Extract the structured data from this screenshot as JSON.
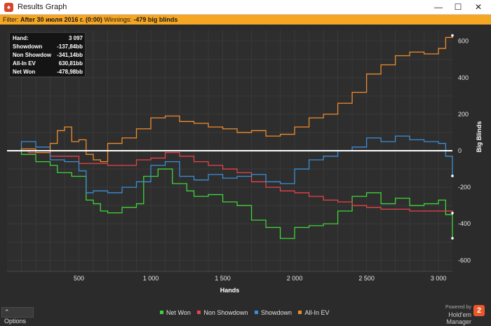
{
  "window": {
    "title": "Results Graph",
    "minimize_glyph": "—",
    "maximize_glyph": "☐",
    "close_glyph": "✕",
    "icon": "app-logo-icon"
  },
  "filter": {
    "prefix": "Filter:",
    "value": "After 30 июля 2016 г. (0:00)",
    "winnings_label": "Winnings:",
    "winnings_value": "-479 big blinds"
  },
  "stats": [
    {
      "label": "Hand:",
      "value": "3 097"
    },
    {
      "label": "Showdown",
      "value": "-137,84bb"
    },
    {
      "label": "Non Showdow",
      "value": "-341,14bb"
    },
    {
      "label": "All-In EV",
      "value": "630,81bb"
    },
    {
      "label": "Net Won",
      "value": "-478,98bb"
    }
  ],
  "options_label": "Options",
  "powered_by": "Powered by",
  "brand": "Hold'em Manager",
  "brand_badge": "2",
  "colors": {
    "net_won": "#3fd43a",
    "non_showdown": "#e8424a",
    "showdown": "#3a8fd6",
    "all_in_ev": "#ee8c2c",
    "zero_line": "#ffffff"
  },
  "chart_data": {
    "type": "line",
    "xlabel": "Hands",
    "ylabel": "Big Blinds",
    "xlim": [
      0,
      3097
    ],
    "ylim": [
      -660,
      660
    ],
    "x_ticks": [
      500,
      1000,
      1500,
      2000,
      2500,
      3000
    ],
    "x_tick_labels": [
      "500",
      "1 000",
      "1 500",
      "2 000",
      "2 500",
      "3 000"
    ],
    "y_ticks": [
      600,
      400,
      200,
      0,
      -200,
      -400,
      -600
    ],
    "y_tick_labels": [
      "600",
      "400",
      "200",
      "0",
      "-200",
      "-400",
      "-600"
    ],
    "grid": true,
    "legend_position": "bottom",
    "series": [
      {
        "name": "Net Won",
        "color_key": "net_won",
        "points": [
          [
            0,
            0
          ],
          [
            100,
            -20
          ],
          [
            200,
            -60
          ],
          [
            300,
            -80
          ],
          [
            350,
            -120
          ],
          [
            450,
            -140
          ],
          [
            550,
            -270
          ],
          [
            600,
            -290
          ],
          [
            650,
            -330
          ],
          [
            700,
            -340
          ],
          [
            800,
            -310
          ],
          [
            900,
            -290
          ],
          [
            950,
            -140
          ],
          [
            1050,
            -100
          ],
          [
            1150,
            -180
          ],
          [
            1250,
            -220
          ],
          [
            1300,
            -250
          ],
          [
            1400,
            -240
          ],
          [
            1500,
            -280
          ],
          [
            1600,
            -300
          ],
          [
            1700,
            -380
          ],
          [
            1800,
            -420
          ],
          [
            1900,
            -480
          ],
          [
            2000,
            -420
          ],
          [
            2100,
            -410
          ],
          [
            2200,
            -400
          ],
          [
            2300,
            -330
          ],
          [
            2400,
            -250
          ],
          [
            2500,
            -230
          ],
          [
            2600,
            -290
          ],
          [
            2700,
            -260
          ],
          [
            2800,
            -300
          ],
          [
            2900,
            -290
          ],
          [
            3000,
            -270
          ],
          [
            3050,
            -350
          ],
          [
            3097,
            -479
          ]
        ]
      },
      {
        "name": "Non Showdown",
        "color_key": "non_showdown",
        "points": [
          [
            0,
            0
          ],
          [
            150,
            -10
          ],
          [
            300,
            -30
          ],
          [
            500,
            -70
          ],
          [
            700,
            -80
          ],
          [
            900,
            -50
          ],
          [
            1000,
            -40
          ],
          [
            1100,
            -10
          ],
          [
            1200,
            -30
          ],
          [
            1300,
            -60
          ],
          [
            1400,
            -80
          ],
          [
            1500,
            -100
          ],
          [
            1600,
            -120
          ],
          [
            1700,
            -170
          ],
          [
            1800,
            -200
          ],
          [
            1900,
            -220
          ],
          [
            2000,
            -230
          ],
          [
            2100,
            -250
          ],
          [
            2200,
            -270
          ],
          [
            2300,
            -280
          ],
          [
            2400,
            -300
          ],
          [
            2500,
            -310
          ],
          [
            2600,
            -320
          ],
          [
            2700,
            -320
          ],
          [
            2800,
            -330
          ],
          [
            2900,
            -330
          ],
          [
            3000,
            -330
          ],
          [
            3097,
            -341
          ]
        ]
      },
      {
        "name": "Showdown",
        "color_key": "showdown",
        "points": [
          [
            0,
            0
          ],
          [
            100,
            50
          ],
          [
            200,
            20
          ],
          [
            300,
            -50
          ],
          [
            400,
            -60
          ],
          [
            500,
            -110
          ],
          [
            550,
            -230
          ],
          [
            600,
            -220
          ],
          [
            700,
            -230
          ],
          [
            800,
            -200
          ],
          [
            900,
            -170
          ],
          [
            1000,
            -80
          ],
          [
            1100,
            -60
          ],
          [
            1200,
            -140
          ],
          [
            1300,
            -160
          ],
          [
            1400,
            -130
          ],
          [
            1500,
            -150
          ],
          [
            1600,
            -140
          ],
          [
            1700,
            -130
          ],
          [
            1800,
            -170
          ],
          [
            1900,
            -180
          ],
          [
            2000,
            -100
          ],
          [
            2100,
            -50
          ],
          [
            2200,
            -30
          ],
          [
            2300,
            0
          ],
          [
            2400,
            20
          ],
          [
            2500,
            70
          ],
          [
            2600,
            50
          ],
          [
            2700,
            80
          ],
          [
            2800,
            60
          ],
          [
            2900,
            50
          ],
          [
            3000,
            40
          ],
          [
            3050,
            -30
          ],
          [
            3097,
            -138
          ]
        ]
      },
      {
        "name": "All-In EV",
        "color_key": "all_in_ev",
        "points": [
          [
            0,
            0
          ],
          [
            100,
            10
          ],
          [
            200,
            -10
          ],
          [
            300,
            40
          ],
          [
            350,
            110
          ],
          [
            400,
            130
          ],
          [
            450,
            50
          ],
          [
            500,
            60
          ],
          [
            550,
            -20
          ],
          [
            600,
            -50
          ],
          [
            650,
            -60
          ],
          [
            700,
            40
          ],
          [
            800,
            70
          ],
          [
            900,
            120
          ],
          [
            1000,
            180
          ],
          [
            1100,
            190
          ],
          [
            1200,
            160
          ],
          [
            1300,
            150
          ],
          [
            1400,
            130
          ],
          [
            1500,
            120
          ],
          [
            1600,
            100
          ],
          [
            1700,
            110
          ],
          [
            1800,
            80
          ],
          [
            1900,
            90
          ],
          [
            2000,
            130
          ],
          [
            2100,
            180
          ],
          [
            2200,
            200
          ],
          [
            2300,
            260
          ],
          [
            2400,
            320
          ],
          [
            2500,
            420
          ],
          [
            2600,
            470
          ],
          [
            2700,
            520
          ],
          [
            2800,
            540
          ],
          [
            2900,
            530
          ],
          [
            3000,
            560
          ],
          [
            3050,
            620
          ],
          [
            3097,
            631
          ]
        ]
      }
    ]
  }
}
